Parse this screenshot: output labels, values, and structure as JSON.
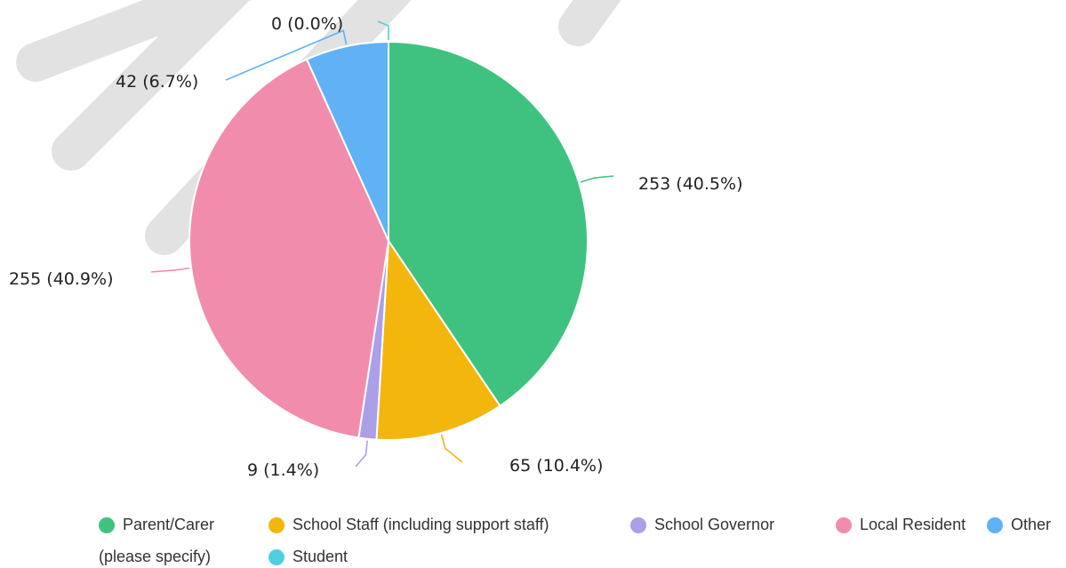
{
  "chart_data": {
    "type": "pie",
    "slices": [
      {
        "label": "Parent/Carer",
        "value": 253,
        "percent": 40.5,
        "data_label": "253 (40.5%)",
        "color": "#3fc280"
      },
      {
        "label": "School Staff (including support staff)",
        "value": 65,
        "percent": 10.4,
        "data_label": "65 (10.4%)",
        "color": "#f2b60c"
      },
      {
        "label": "School Governor",
        "value": 9,
        "percent": 1.4,
        "data_label": "9 (1.4%)",
        "color": "#ab9fe8"
      },
      {
        "label": "Local Resident",
        "value": 255,
        "percent": 40.9,
        "data_label": "255 (40.9%)",
        "color": "#f28cad"
      },
      {
        "label": "Other (please specify)",
        "value": 42,
        "percent": 6.7,
        "data_label": "42 (6.7%)",
        "color": "#60b2f5"
      },
      {
        "label": "Student",
        "value": 0,
        "percent": 0.0,
        "data_label": "0 (0.0%)",
        "color": "#4ed0e0"
      }
    ],
    "legend_position": "bottom",
    "legend": {
      "other_label_part1": "Other",
      "other_label_part2": "(please specify)"
    }
  }
}
